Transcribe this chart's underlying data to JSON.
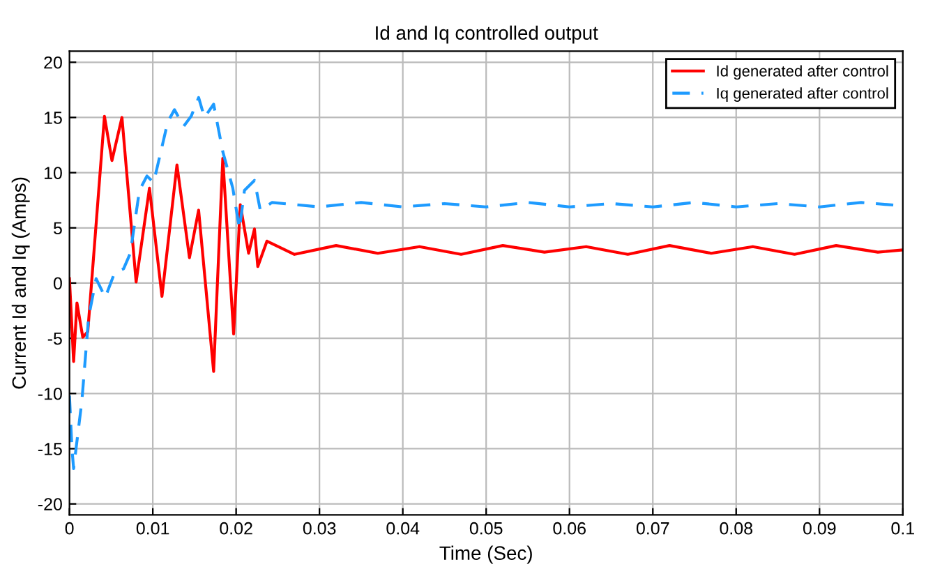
{
  "chart_data": {
    "type": "line",
    "title": "Id and Iq controlled output",
    "xlabel": "Time (Sec)",
    "ylabel": "Current Id and Iq (Amps)",
    "xlim": [
      0,
      0.1
    ],
    "ylim": [
      -21,
      21
    ],
    "xticks": [
      0,
      0.01,
      0.02,
      0.03,
      0.04,
      0.05,
      0.06,
      0.07,
      0.08,
      0.09,
      0.1
    ],
    "yticks": [
      -20,
      -15,
      -10,
      -5,
      0,
      5,
      10,
      15,
      20
    ],
    "grid": true,
    "legend": "top right",
    "series": [
      {
        "name": "Id generated after control",
        "color": "#ff0000",
        "line_style": "solid",
        "x": [
          0,
          0.0005,
          0.0009,
          0.0016,
          0.0022,
          0.0042,
          0.0051,
          0.0063,
          0.008,
          0.0096,
          0.0111,
          0.0129,
          0.0144,
          0.0155,
          0.0173,
          0.0184,
          0.0197,
          0.0205,
          0.0215,
          0.0222,
          0.0226,
          0.0237,
          0.027,
          0.032,
          0.037,
          0.042,
          0.047,
          0.052,
          0.057,
          0.062,
          0.067,
          0.072,
          0.077,
          0.082,
          0.087,
          0.092,
          0.097,
          0.1
        ],
        "values": [
          0.4,
          -7.1,
          -1.8,
          -4.9,
          -4.4,
          15.1,
          11.1,
          15.0,
          0.1,
          8.6,
          -1.2,
          10.7,
          2.3,
          6.6,
          -8.0,
          11.3,
          -4.6,
          7.1,
          2.7,
          4.9,
          1.5,
          3.8,
          2.6,
          3.4,
          2.7,
          3.3,
          2.6,
          3.4,
          2.8,
          3.3,
          2.6,
          3.4,
          2.7,
          3.3,
          2.6,
          3.4,
          2.8,
          3.0
        ]
      },
      {
        "name": "Iq generated after control",
        "color": "#1e9bff",
        "line_style": "dashed",
        "x": [
          0,
          0.0003,
          0.0005,
          0.0015,
          0.0023,
          0.0032,
          0.0043,
          0.0054,
          0.0065,
          0.0073,
          0.0084,
          0.0093,
          0.0101,
          0.0118,
          0.0126,
          0.0137,
          0.0146,
          0.0155,
          0.0162,
          0.0173,
          0.0184,
          0.0196,
          0.0204,
          0.021,
          0.0222,
          0.0229,
          0.0243,
          0.03,
          0.035,
          0.04,
          0.045,
          0.05,
          0.055,
          0.06,
          0.065,
          0.07,
          0.075,
          0.08,
          0.085,
          0.09,
          0.095,
          0.1
        ],
        "values": [
          -10.2,
          -15,
          -16.8,
          -10.6,
          -3.1,
          0.4,
          -1.3,
          0.9,
          1.3,
          2.7,
          8.4,
          9.7,
          9.1,
          14.6,
          15.7,
          14.2,
          15.1,
          16.8,
          15.0,
          16.2,
          11.9,
          8.6,
          4.9,
          8.4,
          9.3,
          6.6,
          7.3,
          6.9,
          7.3,
          6.9,
          7.2,
          6.9,
          7.3,
          6.9,
          7.2,
          6.9,
          7.3,
          6.9,
          7.2,
          6.9,
          7.3,
          7.0
        ]
      }
    ]
  }
}
